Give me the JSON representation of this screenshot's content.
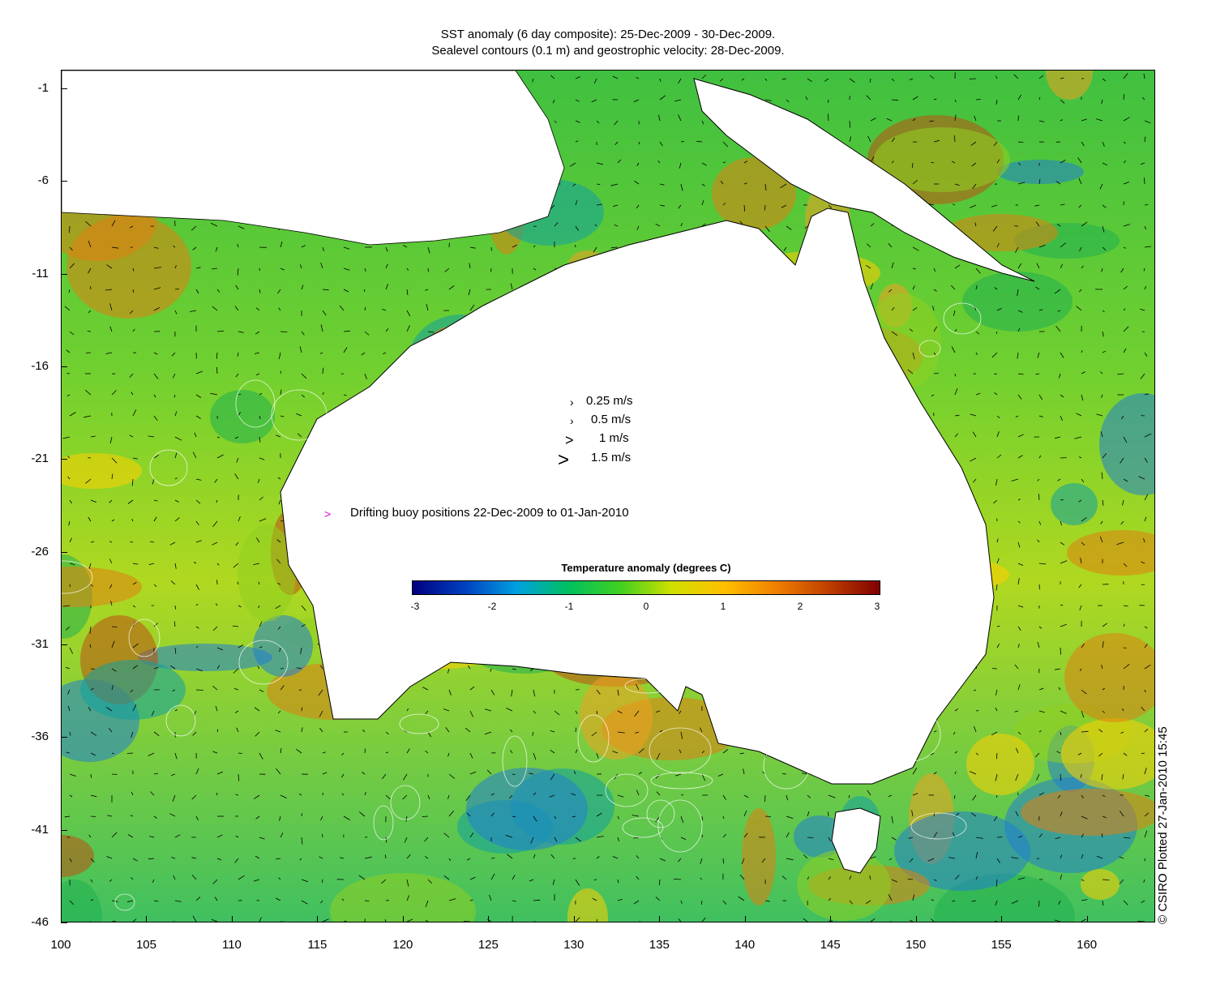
{
  "title_line1": "SST anomaly (6 day composite): 25-Dec-2009 - 30-Dec-2009.",
  "title_line2": "Sealevel contours (0.1 m) and geostrophic velocity: 28-Dec-2009.",
  "axes": {
    "x_ticks": [
      "100",
      "105",
      "110",
      "115",
      "120",
      "125",
      "130",
      "135",
      "140",
      "145",
      "150",
      "155",
      "160"
    ],
    "y_ticks": [
      "-1",
      "-6",
      "-11",
      "-16",
      "-21",
      "-26",
      "-31",
      "-36",
      "-41",
      "-46"
    ],
    "x_range": [
      100,
      164
    ],
    "y_range": [
      -46,
      0
    ]
  },
  "velocity_legend": [
    {
      "label": "0.25 m/s",
      "speed": 0.25
    },
    {
      "label": "0.5 m/s",
      "speed": 0.5
    },
    {
      "label": "1 m/s",
      "speed": 1
    },
    {
      "label": "1.5 m/s",
      "speed": 1.5
    }
  ],
  "buoy_legend": {
    "label": "Drifting buoy positions 22-Dec-2009 to 01-Jan-2010",
    "color": "#e000e0"
  },
  "colorbar": {
    "title": "Temperature anomaly (degrees C)",
    "labels": [
      "-3",
      "-2",
      "-1",
      "0",
      "1",
      "2",
      "3"
    ],
    "range": [
      -3,
      3
    ],
    "colors": [
      "#00007f",
      "#0040c0",
      "#00a0e0",
      "#00c060",
      "#40d020",
      "#d0e000",
      "#ffc000",
      "#f08000",
      "#c04000",
      "#800000"
    ]
  },
  "credit": "© CSIRO Plotted 27-Jan-2010 15:45"
}
